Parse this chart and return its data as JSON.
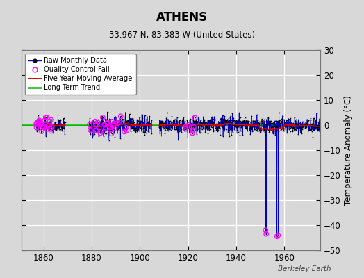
{
  "title": "ATHENS",
  "subtitle": "33.967 N, 83.383 W (United States)",
  "ylabel": "Temperature Anomaly (°C)",
  "watermark": "Berkeley Earth",
  "x_min": 1851,
  "x_max": 1975,
  "y_min": -50,
  "y_max": 30,
  "x_ticks": [
    1860,
    1880,
    1900,
    1920,
    1940,
    1960
  ],
  "y_ticks": [
    -50,
    -40,
    -30,
    -20,
    -10,
    0,
    10,
    20,
    30
  ],
  "bg_color": "#d8d8d8",
  "plot_bg_color": "#d8d8d8",
  "grid_color": "#ffffff",
  "raw_line_color": "#0000cc",
  "raw_dot_color": "#000000",
  "qc_fail_color": "#ff00ff",
  "moving_avg_color": "#dd0000",
  "trend_color": "#00bb00",
  "trend_value": 0.0,
  "seg1_start": 1857.0,
  "seg1_end": 1869.0,
  "seg2_start": 1879.0,
  "seg2_end": 1905.0,
  "seg3_start": 1908.0,
  "seg3_end": 1975.0,
  "noise1": 1.4,
  "noise2": 2.0,
  "noise3": 1.6,
  "spike_years": [
    1952.25,
    1952.5,
    1957.0,
    1957.5
  ],
  "spike_vals": [
    -42.0,
    -43.5,
    -44.5,
    -44.0
  ],
  "qc_year_ranges": [
    [
      1857,
      1864
    ],
    [
      1879,
      1896
    ],
    [
      1918,
      1923
    ],
    [
      1952,
      1960
    ],
    [
      1969,
      1972
    ]
  ],
  "qc_probs": [
    0.25,
    0.14,
    0.07,
    0.0,
    0.04
  ],
  "seed": 12
}
